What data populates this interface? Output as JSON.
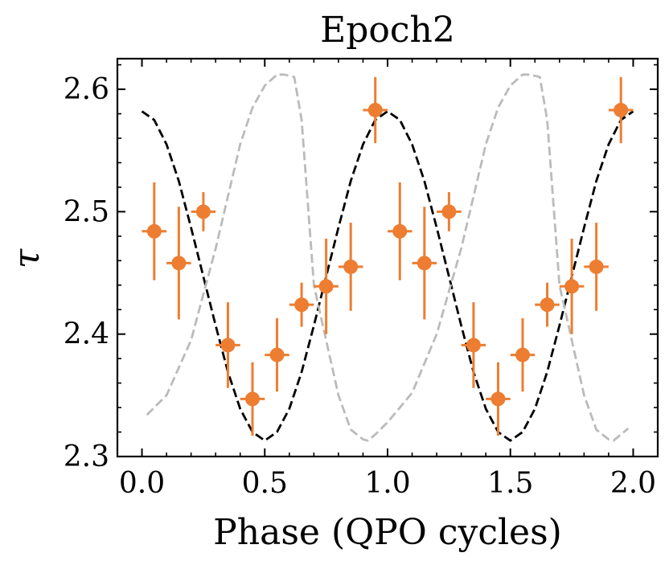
{
  "chart_data": {
    "type": "scatter",
    "title": "Epoch2",
    "xlabel": "Phase (QPO cycles)",
    "ylabel": "τ",
    "xlim": [
      -0.1,
      2.1
    ],
    "ylim": [
      2.3,
      2.625
    ],
    "xticks": [
      0.0,
      0.5,
      1.0,
      1.5,
      2.0
    ],
    "xtick_labels": [
      "0.0",
      "0.5",
      "1.0",
      "1.5",
      "2.0"
    ],
    "yticks": [
      2.3,
      2.4,
      2.5,
      2.6
    ],
    "ytick_labels": [
      "2.3",
      "2.4",
      "2.5",
      "2.6"
    ],
    "x_minor_step": 0.1,
    "y_minor_step": 0.02,
    "grid": false,
    "series": [
      {
        "name": "data",
        "style": "errorbar",
        "color": "#ed7d31",
        "x": [
          0.05,
          0.15,
          0.25,
          0.35,
          0.45,
          0.55,
          0.65,
          0.75,
          0.85,
          0.95,
          1.05,
          1.15,
          1.25,
          1.35,
          1.45,
          1.55,
          1.65,
          1.75,
          1.85,
          1.95
        ],
        "y": [
          2.484,
          2.458,
          2.5,
          2.391,
          2.347,
          2.383,
          2.424,
          2.439,
          2.455,
          2.583,
          2.484,
          2.458,
          2.5,
          2.391,
          2.347,
          2.383,
          2.424,
          2.439,
          2.455,
          2.583
        ],
        "xerr": 0.05,
        "yerr": [
          0.04,
          0.046,
          0.016,
          0.035,
          0.03,
          0.03,
          0.018,
          0.039,
          0.036,
          0.027,
          0.04,
          0.046,
          0.016,
          0.035,
          0.03,
          0.03,
          0.018,
          0.039,
          0.036,
          0.027
        ]
      },
      {
        "name": "sinusoid model",
        "style": "dashed",
        "color": "#000000",
        "x": [
          0.0,
          0.05,
          0.1,
          0.15,
          0.2,
          0.25,
          0.3,
          0.35,
          0.4,
          0.45,
          0.5,
          0.55,
          0.6,
          0.65,
          0.7,
          0.75,
          0.8,
          0.85,
          0.9,
          0.95,
          1.0,
          1.05,
          1.1,
          1.15,
          1.2,
          1.25,
          1.3,
          1.35,
          1.4,
          1.45,
          1.5,
          1.55,
          1.6,
          1.65,
          1.7,
          1.75,
          1.8,
          1.85,
          1.9,
          1.95,
          2.0
        ],
        "y": [
          2.582,
          2.575,
          2.555,
          2.525,
          2.487,
          2.447,
          2.407,
          2.369,
          2.339,
          2.32,
          2.313,
          2.32,
          2.339,
          2.369,
          2.407,
          2.447,
          2.487,
          2.525,
          2.555,
          2.575,
          2.582,
          2.575,
          2.555,
          2.525,
          2.487,
          2.447,
          2.407,
          2.369,
          2.339,
          2.32,
          2.313,
          2.32,
          2.339,
          2.369,
          2.407,
          2.447,
          2.487,
          2.525,
          2.555,
          2.575,
          2.582
        ]
      },
      {
        "name": "reference profile",
        "style": "dashed",
        "color": "#bbbbbb",
        "x": [
          0.02,
          0.1,
          0.2,
          0.3,
          0.4,
          0.45,
          0.5,
          0.55,
          0.58,
          0.6,
          0.62,
          0.65,
          0.7,
          0.75,
          0.8,
          0.85,
          0.9,
          0.92,
          0.95,
          1.0,
          1.1,
          1.2,
          1.3,
          1.4,
          1.45,
          1.5,
          1.55,
          1.58,
          1.6,
          1.62,
          1.65,
          1.7,
          1.75,
          1.8,
          1.85,
          1.9,
          1.92,
          1.95,
          1.98
        ],
        "y": [
          2.334,
          2.35,
          2.395,
          2.47,
          2.555,
          2.585,
          2.603,
          2.612,
          2.612,
          2.611,
          2.61,
          2.575,
          2.44,
          2.395,
          2.35,
          2.322,
          2.314,
          2.313,
          2.318,
          2.328,
          2.352,
          2.4,
          2.47,
          2.555,
          2.585,
          2.603,
          2.612,
          2.612,
          2.611,
          2.61,
          2.575,
          2.44,
          2.395,
          2.35,
          2.322,
          2.314,
          2.313,
          2.318,
          2.323
        ]
      }
    ]
  }
}
